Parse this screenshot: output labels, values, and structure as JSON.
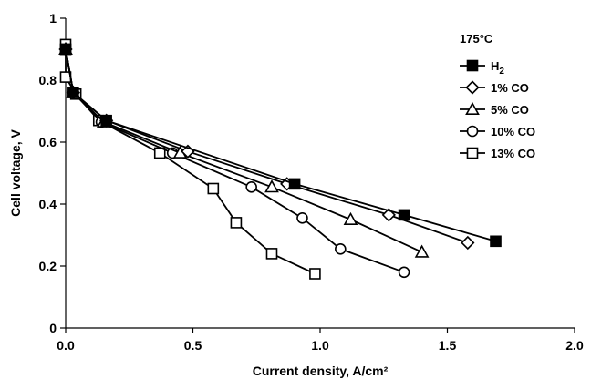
{
  "chart_data": {
    "type": "line",
    "title": "",
    "legend_title": "175°C",
    "xlabel": "Current density, A/cm²",
    "ylabel": "Cell voltage, V",
    "xlim": [
      0,
      2.0
    ],
    "ylim": [
      0,
      1
    ],
    "xticks": [
      "0.0",
      "0.5",
      "1.0",
      "1.5",
      "2.0"
    ],
    "yticks": [
      "0",
      "0.2",
      "0.4",
      "0.6",
      "0.8",
      "1"
    ],
    "x_tick_values": [
      0,
      0.5,
      1.0,
      1.5,
      2.0
    ],
    "y_tick_values": [
      0,
      0.2,
      0.4,
      0.6,
      0.8,
      1
    ],
    "grid": false,
    "legend_position": "top-right",
    "series": [
      {
        "name": "H",
        "name_sub": "2",
        "marker": "square-filled",
        "points": [
          [
            0.0,
            0.9
          ],
          [
            0.03,
            0.76
          ],
          [
            0.16,
            0.67
          ],
          [
            0.9,
            0.465
          ],
          [
            1.33,
            0.365
          ],
          [
            1.69,
            0.28
          ]
        ]
      },
      {
        "name": "1% CO",
        "marker": "diamond",
        "points": [
          [
            0.0,
            0.9
          ],
          [
            0.03,
            0.76
          ],
          [
            0.16,
            0.67
          ],
          [
            0.48,
            0.57
          ],
          [
            0.87,
            0.465
          ],
          [
            1.27,
            0.365
          ],
          [
            1.58,
            0.275
          ]
        ]
      },
      {
        "name": "5% CO",
        "marker": "triangle",
        "points": [
          [
            0.0,
            0.9
          ],
          [
            0.03,
            0.76
          ],
          [
            0.15,
            0.665
          ],
          [
            0.45,
            0.565
          ],
          [
            0.81,
            0.455
          ],
          [
            1.12,
            0.35
          ],
          [
            1.4,
            0.245
          ]
        ]
      },
      {
        "name": "10% CO",
        "marker": "circle",
        "points": [
          [
            0.0,
            0.9
          ],
          [
            0.03,
            0.76
          ],
          [
            0.14,
            0.665
          ],
          [
            0.42,
            0.565
          ],
          [
            0.73,
            0.455
          ],
          [
            0.93,
            0.355
          ],
          [
            1.08,
            0.255
          ],
          [
            1.33,
            0.18
          ]
        ]
      },
      {
        "name": "13% CO",
        "marker": "square-open",
        "points": [
          [
            0.0,
            0.915
          ],
          [
            0.0,
            0.9
          ],
          [
            0.0,
            0.81
          ],
          [
            0.04,
            0.755
          ],
          [
            0.13,
            0.67
          ],
          [
            0.37,
            0.565
          ],
          [
            0.58,
            0.45
          ],
          [
            0.67,
            0.34
          ],
          [
            0.81,
            0.24
          ],
          [
            0.98,
            0.175
          ]
        ]
      }
    ]
  }
}
